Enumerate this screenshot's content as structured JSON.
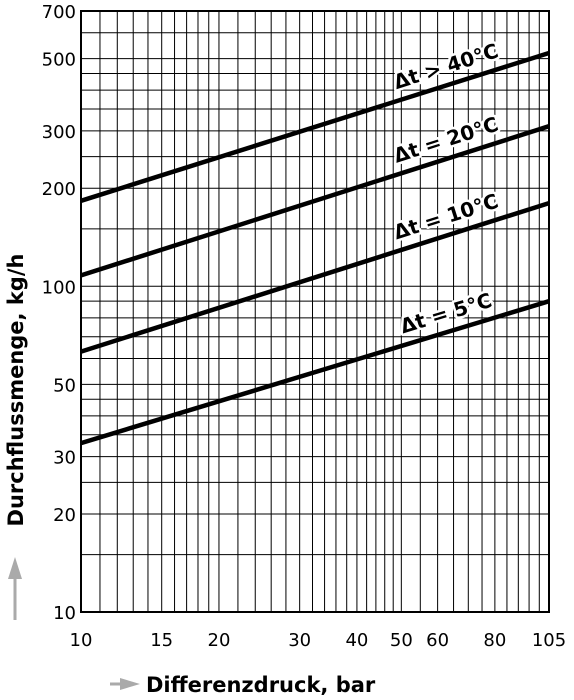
{
  "chart_data": {
    "type": "line",
    "xlabel": "Differenzdruck, bar",
    "ylabel": "Durchflussmenge, kg/h",
    "x_scale": "log",
    "y_scale": "log",
    "xlim": [
      10,
      105
    ],
    "ylim": [
      10,
      700
    ],
    "x_ticks": [
      10,
      15,
      20,
      30,
      40,
      50,
      60,
      80,
      105
    ],
    "x_tick_labels": [
      "10",
      "15",
      "20",
      "30",
      "40",
      "50",
      "60",
      "80",
      "105"
    ],
    "y_ticks": [
      10,
      20,
      30,
      50,
      100,
      200,
      300,
      500,
      700
    ],
    "y_tick_labels": [
      "10",
      "20",
      "30",
      "50",
      "100",
      "200",
      "300",
      "500",
      "700"
    ],
    "x_grid": [
      10,
      11,
      12,
      13,
      14,
      15,
      16,
      17,
      18,
      19,
      20,
      22,
      24,
      26,
      28,
      30,
      32,
      34,
      36,
      38,
      40,
      42,
      44,
      46,
      48,
      50,
      55,
      60,
      65,
      70,
      75,
      80,
      85,
      90,
      95,
      100,
      105
    ],
    "y_grid": [
      10,
      15,
      20,
      25,
      30,
      35,
      40,
      45,
      50,
      60,
      70,
      80,
      90,
      100,
      150,
      200,
      250,
      300,
      350,
      400,
      450,
      500,
      600,
      700
    ],
    "grid": true,
    "line_color": "#000000",
    "series": [
      {
        "name": "Δt > 40°C",
        "x": [
          10,
          105
        ],
        "y": [
          183,
          520
        ]
      },
      {
        "name": "Δt = 20°C",
        "x": [
          10,
          105
        ],
        "y": [
          108,
          310
        ]
      },
      {
        "name": "Δt = 10°C",
        "x": [
          10,
          105
        ],
        "y": [
          63,
          180
        ]
      },
      {
        "name": "Δt = 5°C",
        "x": [
          10,
          105
        ],
        "y": [
          33,
          90
        ]
      }
    ]
  }
}
